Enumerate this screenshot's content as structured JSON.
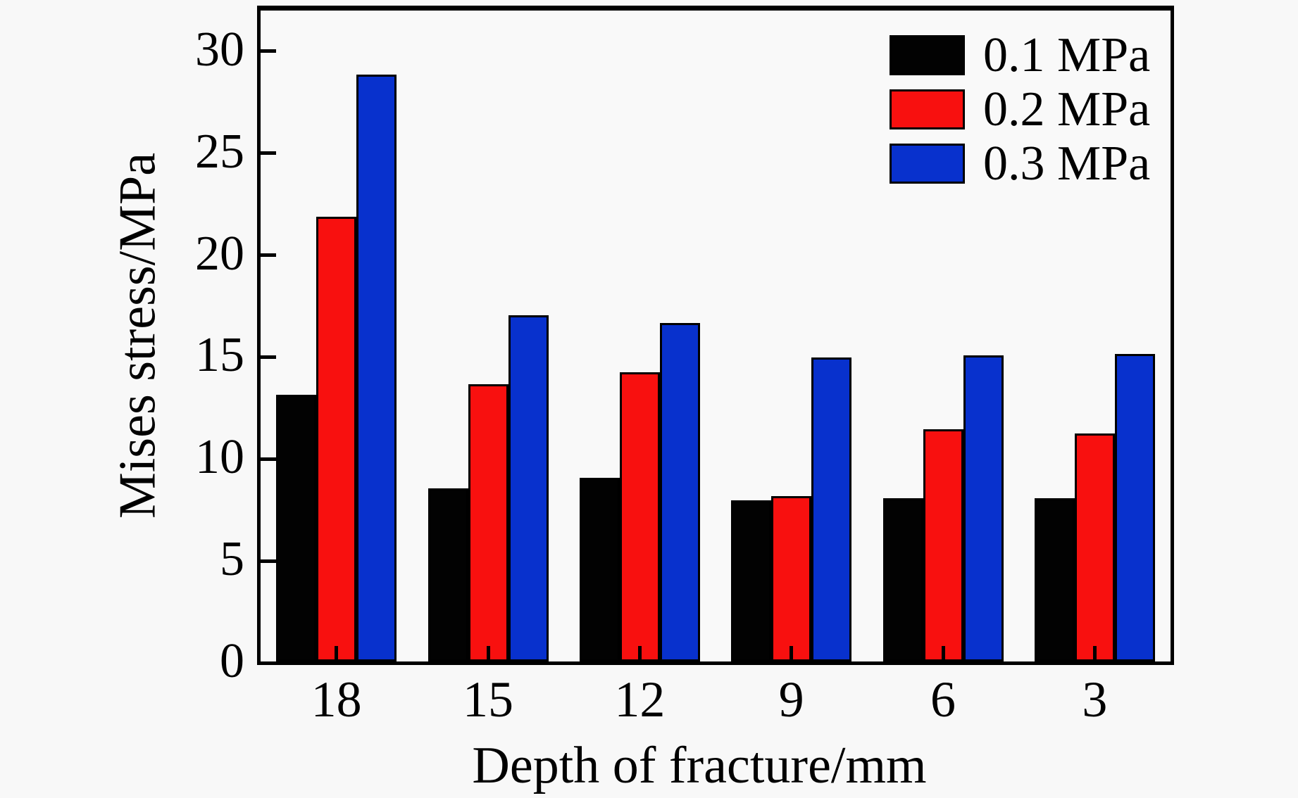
{
  "figure": {
    "background": "#f8f8f8",
    "plot_background": "#f9f9f9",
    "axis_color": "#000000"
  },
  "chart_data": {
    "type": "bar",
    "title": "",
    "xlabel": "Depth of fracture/mm",
    "ylabel": "Mises stress/MPa",
    "categories": [
      "18",
      "15",
      "12",
      "9",
      "6",
      "3"
    ],
    "series": [
      {
        "name": "0.1 MPa",
        "color": "#020202",
        "values": [
          13.1,
          8.5,
          9.0,
          7.9,
          8.0,
          8.0
        ]
      },
      {
        "name": "0.2 MPa",
        "color": "#f8100f",
        "values": [
          21.8,
          13.6,
          14.2,
          8.1,
          11.4,
          11.2
        ]
      },
      {
        "name": "0.3 MPa",
        "color": "#0831cd",
        "values": [
          28.8,
          17.0,
          16.6,
          14.9,
          15.0,
          15.1
        ]
      }
    ],
    "ylim": [
      0,
      32
    ],
    "yticks": [
      0,
      5,
      10,
      15,
      20,
      25,
      30
    ],
    "grid": false,
    "legend_position": "top-right"
  }
}
